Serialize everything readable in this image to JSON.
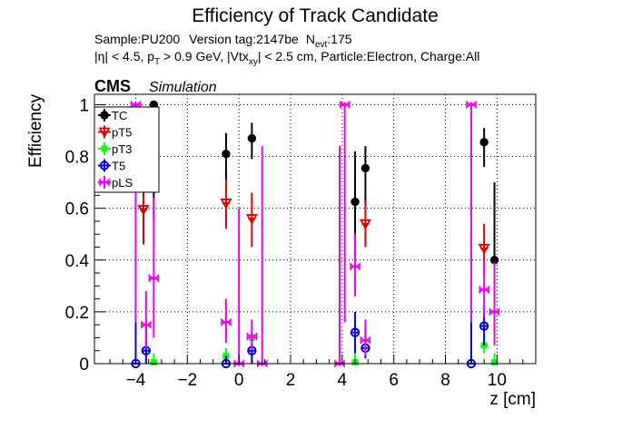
{
  "title": "Efficiency of Track Candidate",
  "subtitle": {
    "sample": "Sample:PU200",
    "version": "Version tag:2147be",
    "nevt_prefix": "N",
    "nevt_sub": "evt",
    "nevt_value": ":175",
    "cuts_eta": "|η| < 4.5, p",
    "cuts_pt_sub": "T",
    "cuts_pt": " > 0.9 GeV, |Vtx",
    "cuts_vtx_sub": "xy",
    "cuts_rest": "| < 2.5 cm, Particle:Electron, Charge:All"
  },
  "cms_label": "CMS",
  "simulation_label": "Simulation",
  "colors": {
    "TC": "#000000",
    "pT5": "#dd0000",
    "pT3": "#22ee22",
    "T5": "#0000dd",
    "pLS": "#ee00ee"
  },
  "chart_data": {
    "type": "scatter",
    "xlabel": "z [cm]",
    "ylabel": "Efficiency",
    "xlim": [
      -5.6,
      11.5
    ],
    "ylim": [
      0,
      1.04
    ],
    "x_ticks": [
      -4,
      -2,
      0,
      2,
      4,
      6,
      8,
      10
    ],
    "y_ticks": [
      0,
      0.2,
      0.4,
      0.6,
      0.8,
      1
    ],
    "grid": true,
    "legend_position": "top-left",
    "series": [
      {
        "name": "TC",
        "marker": "filled-circle",
        "points": [
          {
            "x": -3.3,
            "y": 1.0,
            "lo": 0.55,
            "hi": 1.0
          },
          {
            "x": -0.5,
            "y": 0.81,
            "lo": 0.71,
            "hi": 0.89
          },
          {
            "x": 0.5,
            "y": 0.87,
            "lo": 0.79,
            "hi": 0.93
          },
          {
            "x": 4.5,
            "y": 0.625,
            "lo": 0.4,
            "hi": 0.82
          },
          {
            "x": 4.9,
            "y": 0.755,
            "lo": 0.61,
            "hi": 0.84
          },
          {
            "x": 9.5,
            "y": 0.855,
            "lo": 0.76,
            "hi": 0.91
          },
          {
            "x": 9.9,
            "y": 0.4,
            "lo": 0.13,
            "hi": 0.7
          }
        ]
      },
      {
        "name": "pT5",
        "marker": "open-triangle",
        "points": [
          {
            "x": -3.7,
            "y": 0.595,
            "lo": 0.46,
            "hi": 0.72
          },
          {
            "x": -0.5,
            "y": 0.62,
            "lo": 0.52,
            "hi": 0.71
          },
          {
            "x": 0.5,
            "y": 0.56,
            "lo": 0.45,
            "hi": 0.66
          },
          {
            "x": 4.9,
            "y": 0.54,
            "lo": 0.45,
            "hi": 0.63
          },
          {
            "x": 9.5,
            "y": 0.445,
            "lo": 0.34,
            "hi": 0.54
          }
        ]
      },
      {
        "name": "pT3",
        "marker": "filled-square",
        "points": [
          {
            "x": -3.3,
            "y": 0.005,
            "lo": 0.0,
            "hi": 0.04
          },
          {
            "x": -0.5,
            "y": 0.03,
            "lo": 0.01,
            "hi": 0.06
          },
          {
            "x": 0.5,
            "y": 0.1,
            "lo": 0.05,
            "hi": 0.16
          },
          {
            "x": 4.5,
            "y": 0.005,
            "lo": 0.0,
            "hi": 0.05
          },
          {
            "x": 9.5,
            "y": 0.07,
            "lo": 0.04,
            "hi": 0.11
          },
          {
            "x": 9.9,
            "y": 0.005,
            "lo": 0.0,
            "hi": 0.04
          }
        ]
      },
      {
        "name": "T5",
        "marker": "open-circle",
        "points": [
          {
            "x": -4.0,
            "y": 0.0,
            "lo": 0.0,
            "hi": 0.16
          },
          {
            "x": -3.6,
            "y": 0.05,
            "lo": 0.0,
            "hi": 0.16
          },
          {
            "x": -0.5,
            "y": 0.0,
            "lo": 0.0,
            "hi": 0.03
          },
          {
            "x": 0.5,
            "y": 0.05,
            "lo": 0.0,
            "hi": 0.12
          },
          {
            "x": 4.5,
            "y": 0.12,
            "lo": 0.04,
            "hi": 0.2
          },
          {
            "x": 4.9,
            "y": 0.06,
            "lo": 0.02,
            "hi": 0.13
          },
          {
            "x": 9.0,
            "y": 0.0,
            "lo": 0.0,
            "hi": 0.16
          },
          {
            "x": 9.5,
            "y": 0.145,
            "lo": 0.07,
            "hi": 0.22
          }
        ]
      },
      {
        "name": "pLS",
        "marker": "open-diamond",
        "points": [
          {
            "x": -4.0,
            "y": 1.0,
            "lo": 0.16,
            "hi": 1.0
          },
          {
            "x": -3.6,
            "y": 0.15,
            "lo": 0.06,
            "hi": 0.28
          },
          {
            "x": -3.3,
            "y": 0.33,
            "lo": 0.1,
            "hi": 0.64
          },
          {
            "x": -0.5,
            "y": 0.16,
            "lo": 0.08,
            "hi": 0.25
          },
          {
            "x": 0.0,
            "y": 0.0,
            "lo": 0.0,
            "hi": 0.6
          },
          {
            "x": 0.5,
            "y": 0.105,
            "lo": 0.05,
            "hi": 0.17
          },
          {
            "x": 0.9,
            "y": 0.0,
            "lo": 0.0,
            "hi": 0.84
          },
          {
            "x": 3.9,
            "y": 0.0,
            "lo": 0.0,
            "hi": 0.84
          },
          {
            "x": 4.1,
            "y": 1.0,
            "lo": 0.16,
            "hi": 1.0
          },
          {
            "x": 4.5,
            "y": 0.375,
            "lo": 0.26,
            "hi": 0.5
          },
          {
            "x": 4.9,
            "y": 0.09,
            "lo": 0.03,
            "hi": 0.17
          },
          {
            "x": 9.0,
            "y": 1.0,
            "lo": 0.16,
            "hi": 1.0
          },
          {
            "x": 9.5,
            "y": 0.285,
            "lo": 0.18,
            "hi": 0.4
          },
          {
            "x": 9.9,
            "y": 0.2,
            "lo": 0.07,
            "hi": 0.39
          }
        ]
      }
    ]
  }
}
